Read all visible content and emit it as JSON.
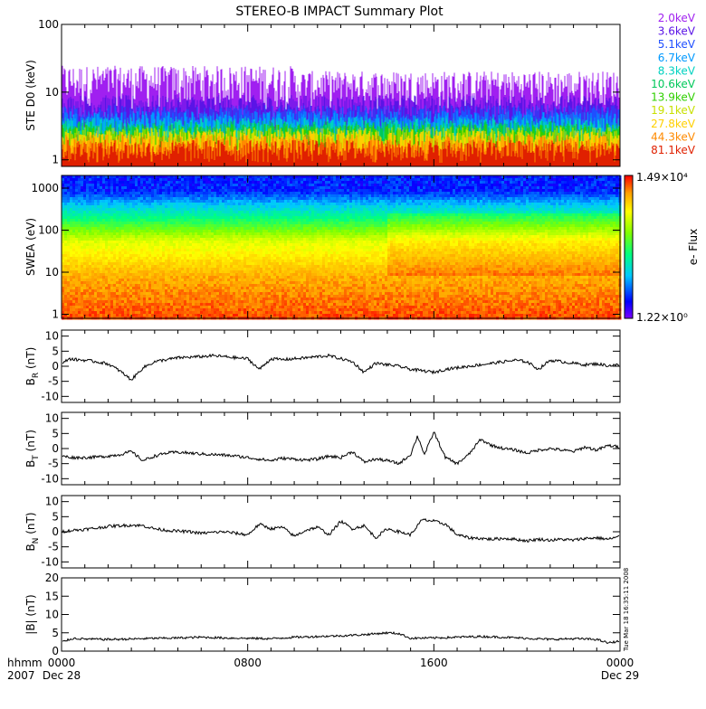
{
  "chart_data": {
    "type": "line",
    "title": "STEREO-B IMPACT Summary Plot",
    "timestamp_note": "Tue Mar 18 16:35:11 2008",
    "time_axis": {
      "units": "hhmm",
      "year": "2007",
      "ticks": [
        {
          "label": "0000",
          "sublabel": "Dec 28"
        },
        {
          "label": "0800",
          "sublabel": ""
        },
        {
          "label": "1600",
          "sublabel": ""
        },
        {
          "label": "0000",
          "sublabel": "Dec 29"
        }
      ],
      "range_hours": [
        0,
        24
      ]
    },
    "panels": [
      {
        "id": "ste",
        "ylabel": "STE D0 (keV)",
        "type": "spectral-lines",
        "yscale": "log",
        "ylim": [
          0.8,
          100
        ],
        "yticks": [
          {
            "v": 1,
            "label": "1"
          },
          {
            "v": 10,
            "label": "10"
          },
          {
            "v": 100,
            "label": "100"
          }
        ],
        "legend_placement": "right",
        "series": [
          {
            "name": "2.0keV",
            "color": "#a020f0",
            "baseline": 10.0
          },
          {
            "name": "3.6keV",
            "color": "#5a14e6",
            "baseline": 5.5
          },
          {
            "name": "5.1keV",
            "color": "#1f4fff",
            "baseline": 3.9
          },
          {
            "name": "6.7keV",
            "color": "#0099ff",
            "baseline": 3.2
          },
          {
            "name": "8.3keV",
            "color": "#00d2c0",
            "baseline": 2.6
          },
          {
            "name": "10.6keV",
            "color": "#00c85a",
            "baseline": 2.3
          },
          {
            "name": "13.9keV",
            "color": "#30d000",
            "baseline": 2.05
          },
          {
            "name": "19.1keV",
            "color": "#c8e000",
            "baseline": 1.85
          },
          {
            "name": "27.8keV",
            "color": "#ffd000",
            "baseline": 1.65
          },
          {
            "name": "44.3keV",
            "color": "#ff8a00",
            "baseline": 1.45
          },
          {
            "name": "81.1keV",
            "color": "#e02000",
            "baseline": 1.2
          }
        ]
      },
      {
        "id": "swea",
        "ylabel": "SWEA (eV)",
        "type": "heatmap",
        "yscale": "log",
        "ylim": [
          0.8,
          2000
        ],
        "yticks": [
          {
            "v": 1,
            "label": "1"
          },
          {
            "v": 10,
            "label": "10"
          },
          {
            "v": 100,
            "label": "100"
          },
          {
            "v": 1000,
            "label": "1000"
          }
        ],
        "colorbar": {
          "label": "e- Flux",
          "max_label": "1.49×10⁴",
          "min_label": "1.22×10⁰"
        }
      },
      {
        "id": "br",
        "ylabel": "B_R (nT)",
        "type": "line",
        "ylim": [
          -12,
          12
        ],
        "yticks": [
          {
            "v": 10,
            "label": "10"
          },
          {
            "v": 5,
            "label": "5"
          },
          {
            "v": 0,
            "label": "0"
          },
          {
            "v": -5,
            "label": "-5"
          },
          {
            "v": -10,
            "label": "-10"
          }
        ],
        "x": [
          0,
          0.3,
          0.6,
          1,
          1.5,
          2,
          2.5,
          3,
          3.5,
          4,
          4.5,
          5,
          5.5,
          6,
          6.5,
          7,
          7.5,
          8,
          8.5,
          9,
          9.5,
          10,
          10.5,
          11,
          11.5,
          12,
          12.5,
          13,
          13.5,
          14,
          14.5,
          15,
          15.5,
          16,
          16.5,
          17,
          17.5,
          18,
          18.5,
          19,
          19.5,
          20,
          20.5,
          21,
          21.5,
          22,
          22.5,
          23,
          23.5,
          24
        ],
        "values": [
          0.5,
          2.5,
          2.2,
          2,
          1.5,
          0.8,
          -1.5,
          -4.5,
          -0.5,
          1.5,
          2.2,
          2.8,
          3,
          3.2,
          3.5,
          3.2,
          2.8,
          2.5,
          -1,
          2.5,
          2.2,
          2.5,
          2.8,
          3.2,
          3.5,
          2.5,
          1.5,
          -2,
          1,
          0.5,
          0,
          -1,
          -1.5,
          -2,
          -1,
          -0.5,
          0,
          0.5,
          1,
          1.5,
          2,
          1.5,
          -1,
          2,
          1.5,
          1,
          0.5,
          0.8,
          0.2,
          0.5
        ]
      },
      {
        "id": "bt",
        "ylabel": "B_T (nT)",
        "type": "line",
        "ylim": [
          -12,
          12
        ],
        "yticks": [
          {
            "v": 10,
            "label": "10"
          },
          {
            "v": 5,
            "label": "5"
          },
          {
            "v": 0,
            "label": "0"
          },
          {
            "v": -5,
            "label": "-5"
          },
          {
            "v": -10,
            "label": "-10"
          }
        ],
        "x": [
          0,
          0.5,
          1,
          1.5,
          2,
          2.5,
          3,
          3.5,
          4,
          4.5,
          5,
          5.5,
          6,
          6.5,
          7,
          7.5,
          8,
          8.5,
          9,
          9.5,
          10,
          10.5,
          11,
          11.5,
          12,
          12.5,
          13,
          13.5,
          14,
          14.5,
          15,
          15.3,
          15.6,
          16,
          16.5,
          17,
          17.5,
          18,
          18.5,
          19,
          19.5,
          20,
          20.5,
          21,
          21.5,
          22,
          22.5,
          23,
          23.5,
          24
        ],
        "values": [
          -2.5,
          -3,
          -3,
          -2.8,
          -2.5,
          -2,
          -1,
          -4,
          -2.5,
          -1.5,
          -1.2,
          -1.5,
          -1.8,
          -2,
          -2.2,
          -2.5,
          -3,
          -3.5,
          -4,
          -3.2,
          -3.5,
          -3.8,
          -3.5,
          -2.5,
          -3,
          -1,
          -4.5,
          -3.5,
          -4,
          -5,
          -2,
          4.2,
          -2,
          5.5,
          -3,
          -5,
          -2,
          3,
          1,
          0,
          -0.5,
          -1.5,
          -0.5,
          0,
          -0.5,
          -1,
          0.5,
          -0.5,
          1,
          0.5
        ]
      },
      {
        "id": "bn",
        "ylabel": "B_N (nT)",
        "type": "line",
        "ylim": [
          -12,
          12
        ],
        "yticks": [
          {
            "v": 10,
            "label": "10"
          },
          {
            "v": 5,
            "label": "5"
          },
          {
            "v": 0,
            "label": "0"
          },
          {
            "v": -5,
            "label": "-5"
          },
          {
            "v": -10,
            "label": "-10"
          }
        ],
        "x": [
          0,
          0.5,
          1,
          1.5,
          2,
          2.5,
          3,
          3.5,
          4,
          4.5,
          5,
          5.5,
          6,
          6.5,
          7,
          7.5,
          8,
          8.5,
          9,
          9.5,
          10,
          10.5,
          11,
          11.5,
          12,
          12.5,
          13,
          13.5,
          14,
          14.5,
          15,
          15.5,
          16,
          16.5,
          17,
          17.5,
          18,
          18.5,
          19,
          19.5,
          20,
          20.5,
          21,
          21.5,
          22,
          22.5,
          23,
          23.5,
          24
        ],
        "values": [
          0,
          0.5,
          0.8,
          1.2,
          1.8,
          2,
          2.2,
          2,
          1,
          0.5,
          0.2,
          0,
          -0.5,
          -0.2,
          0,
          -0.5,
          -1,
          2.5,
          1,
          1.5,
          -1.5,
          0.5,
          1.5,
          -1,
          3.5,
          1,
          2,
          -2,
          1,
          0,
          -1,
          4,
          3.5,
          2.5,
          -1,
          -2,
          -2.2,
          -2.5,
          -2.2,
          -2.5,
          -3,
          -2.5,
          -2.8,
          -2.5,
          -2.8,
          -2.2,
          -2,
          -2.5,
          -1.5
        ]
      },
      {
        "id": "bmag",
        "ylabel": "|B| (nT)",
        "type": "line",
        "ylim": [
          0,
          20
        ],
        "yticks": [
          {
            "v": 20,
            "label": "20"
          },
          {
            "v": 15,
            "label": "15"
          },
          {
            "v": 10,
            "label": "10"
          },
          {
            "v": 5,
            "label": "5"
          },
          {
            "v": 0,
            "label": "0"
          }
        ],
        "x": [
          0,
          0.5,
          1,
          2,
          3,
          4,
          5,
          6,
          7,
          8,
          9,
          10,
          11,
          12,
          13,
          14,
          14.5,
          15,
          16,
          17,
          18,
          19,
          20,
          21,
          22,
          23,
          23.5,
          24
        ],
        "values": [
          2.5,
          3.5,
          3.3,
          3.2,
          3.3,
          3.5,
          3.6,
          3.8,
          3.6,
          3.5,
          3.4,
          3.8,
          4,
          4.2,
          4.5,
          5,
          4.8,
          3.5,
          3.6,
          3.8,
          4,
          3.8,
          3.5,
          3.2,
          3.4,
          3.2,
          2.2,
          2.8
        ]
      }
    ]
  }
}
